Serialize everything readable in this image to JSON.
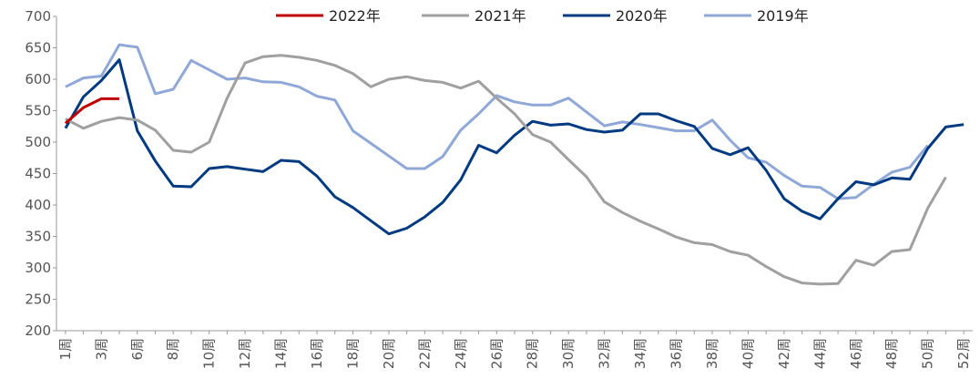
{
  "chart_data": {
    "type": "line",
    "categories": [
      "1周",
      null,
      "3周",
      null,
      "6周",
      null,
      "8周",
      null,
      "10周",
      null,
      "12周",
      null,
      "14周",
      null,
      "16周",
      null,
      "18周",
      null,
      "20周",
      null,
      "22周",
      null,
      "24周",
      null,
      "26周",
      null,
      "28周",
      null,
      "30周",
      null,
      "32周",
      null,
      "34周",
      null,
      "36周",
      null,
      "38周",
      null,
      "40周",
      null,
      "42周",
      null,
      "44周",
      null,
      "46周",
      null,
      "48周",
      null,
      "50周",
      null,
      "52周"
    ],
    "series": [
      {
        "name": "2022年",
        "color": "#c00000",
        "values": [
          530,
          555,
          569,
          569,
          null,
          null,
          null,
          null,
          null,
          null,
          null,
          null,
          null,
          null,
          null,
          null,
          null,
          null,
          null,
          null,
          null,
          null,
          null,
          null,
          null,
          null,
          null,
          null,
          null,
          null,
          null,
          null,
          null,
          null,
          null,
          null,
          null,
          null,
          null,
          null,
          null,
          null,
          null,
          null,
          null,
          null,
          null,
          null,
          null,
          null,
          null
        ]
      },
      {
        "name": "2021年",
        "color": "#a0a0a0",
        "values": [
          537,
          522,
          533,
          539,
          535,
          519,
          487,
          484,
          500,
          570,
          626,
          636,
          638,
          635,
          630,
          622,
          609,
          588,
          600,
          604,
          598,
          595,
          586,
          597,
          570,
          545,
          512,
          500,
          472,
          445,
          405,
          388,
          374,
          362,
          349,
          340,
          337,
          326,
          320,
          302,
          286,
          276,
          274,
          275,
          312,
          304,
          326,
          329,
          395,
          444,
          null
        ]
      },
      {
        "name": "2020年",
        "color": "#003a80",
        "values": [
          522,
          572,
          598,
          631,
          518,
          470,
          430,
          429,
          458,
          461,
          457,
          453,
          471,
          469,
          446,
          413,
          396,
          375,
          354,
          363,
          381,
          404,
          440,
          495,
          483,
          511,
          533,
          527,
          529,
          520,
          516,
          519,
          545,
          545,
          534,
          525,
          490,
          480,
          491,
          455,
          410,
          390,
          378,
          410,
          437,
          432,
          443,
          441,
          490,
          524,
          528
        ]
      },
      {
        "name": "2019年",
        "color": "#8fa8d8",
        "values": [
          588,
          602,
          605,
          655,
          651,
          577,
          584,
          630,
          615,
          600,
          602,
          596,
          595,
          588,
          573,
          567,
          518,
          498,
          478,
          458,
          458,
          477,
          519,
          545,
          574,
          564,
          559,
          559,
          570,
          548,
          526,
          532,
          528,
          523,
          518,
          518,
          535,
          503,
          475,
          468,
          447,
          430,
          428,
          410,
          412,
          433,
          452,
          460,
          495,
          null,
          null
        ]
      }
    ],
    "ylim": [
      200,
      700
    ],
    "yticks": [
      200,
      250,
      300,
      350,
      400,
      450,
      500,
      550,
      600,
      650,
      700
    ],
    "grid": false,
    "legend": "top"
  }
}
